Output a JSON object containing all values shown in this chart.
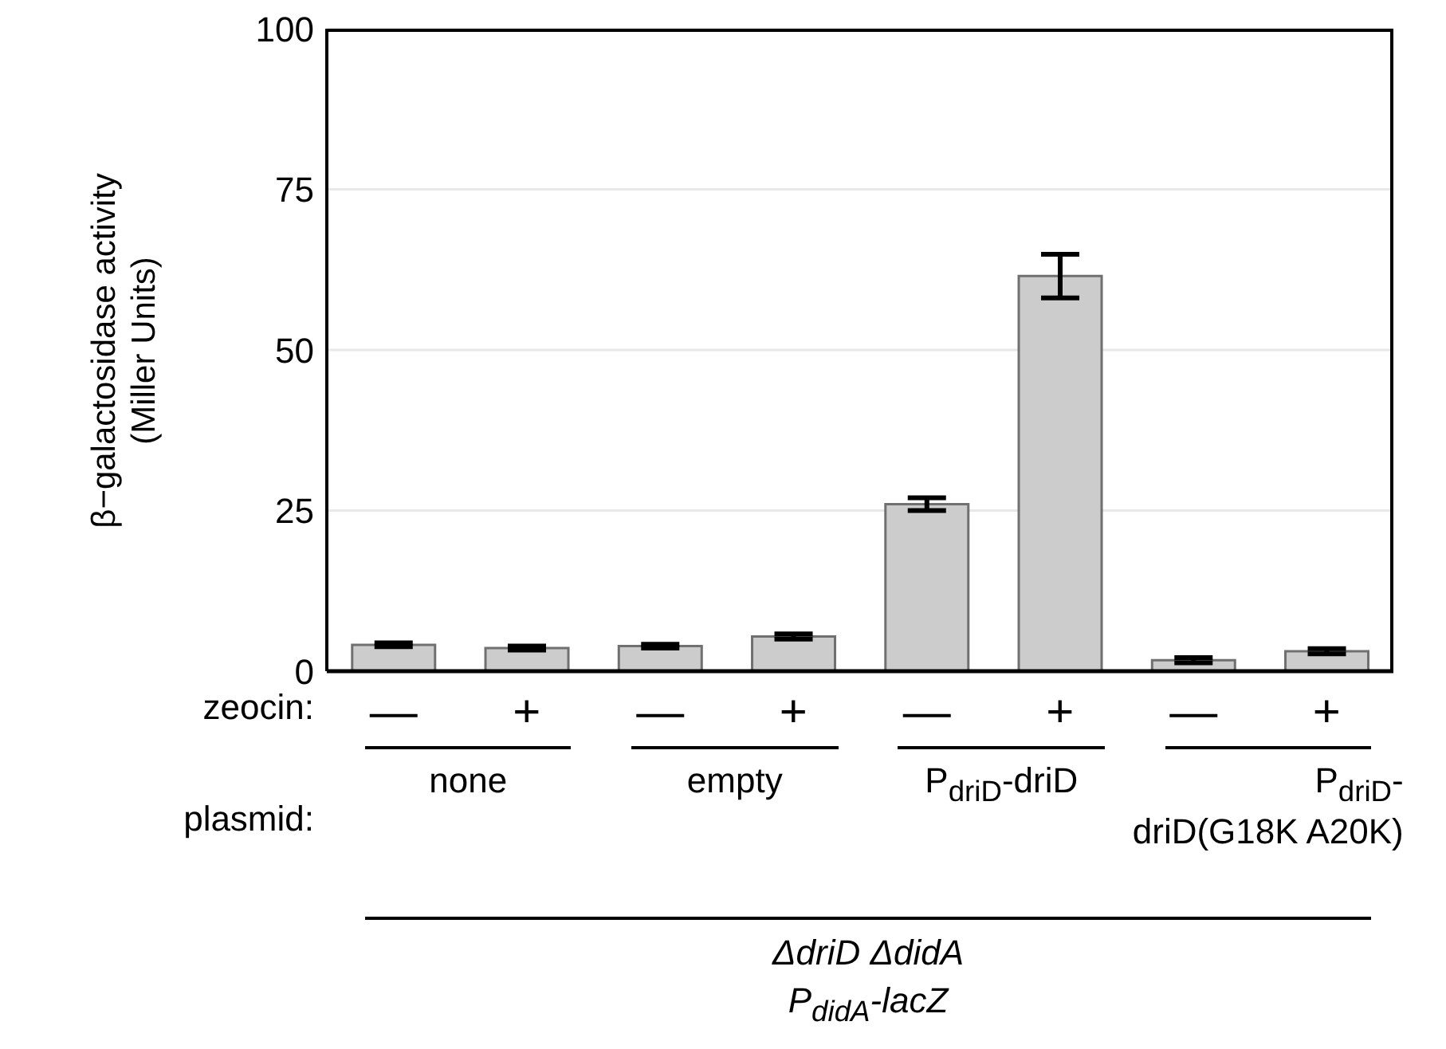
{
  "chart_data": {
    "type": "bar",
    "ylabel": "β−galactosidase activity\n(Miller Units)",
    "categories": [
      "—",
      "+",
      "—",
      "+",
      "—",
      "+",
      "—",
      "+"
    ],
    "values": [
      4.1,
      3.6,
      3.9,
      5.4,
      26.0,
      61.5,
      1.7,
      3.1
    ],
    "errors": [
      0.3,
      0.3,
      0.3,
      0.4,
      1.0,
      3.4,
      0.4,
      0.4
    ],
    "color": "#cccccc",
    "ylim": [
      0,
      100
    ],
    "yticks": [
      0,
      25,
      50,
      75,
      100
    ],
    "grid": "y",
    "annotations": [
      "zeocin:",
      "plasmid:",
      "none",
      "empty",
      "P$_{driD}$-driD",
      "P$_{driD}$-\ndriD(G18K A20K)",
      "ΔdriD ΔdidA",
      "P$_{didA}$-lacZ"
    ]
  }
}
